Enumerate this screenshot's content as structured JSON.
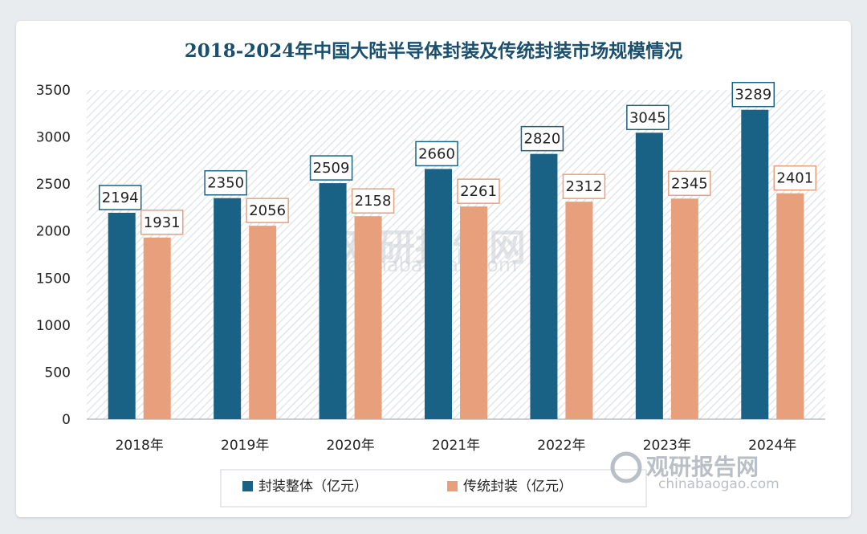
{
  "chart_data": {
    "type": "bar",
    "title": "2018-2024年中国大陆半导体封装及传统封装市场规模情况",
    "categories": [
      "2018年",
      "2019年",
      "2020年",
      "2021年",
      "2022年",
      "2023年",
      "2024年"
    ],
    "series": [
      {
        "name": "封装整体（亿元）",
        "values": [
          2194,
          2350,
          2509,
          2660,
          2820,
          3045,
          3289
        ],
        "color": "#1a6285"
      },
      {
        "name": "传统封装（亿元）",
        "values": [
          1931,
          2056,
          2158,
          2261,
          2312,
          2345,
          2401
        ],
        "color": "#e8a07c"
      }
    ],
    "ylim": [
      0,
      3500
    ],
    "yticks": [
      0,
      500,
      1000,
      1500,
      2000,
      2500,
      3000,
      3500
    ],
    "grid": false,
    "legend_position": "bottom"
  },
  "watermark": {
    "center_text": "观研报告网",
    "center_url": "chinabaogao.com",
    "corner_text": "观研报告网",
    "corner_url": "chinabaogao.com"
  },
  "colors": {
    "title": "#1a4f6e",
    "label_border_dark": "#1a6285",
    "label_border_light": "#e8a07c",
    "watermark": "#b9bfc6"
  }
}
